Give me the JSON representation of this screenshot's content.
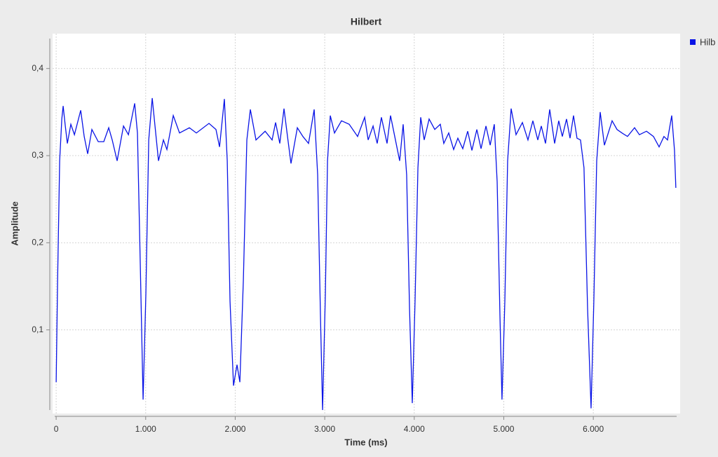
{
  "chart_data": {
    "type": "line",
    "title": "Hilbert",
    "x_label": "Time (ms)",
    "y_label": "Amplitude",
    "xlim": [
      -40,
      6970
    ],
    "ylim": [
      0.004,
      0.44
    ],
    "xticks": [
      0,
      {
        "value": 1000,
        "label": "1.000"
      },
      {
        "value": 2000,
        "label": "2.000"
      },
      {
        "value": 3000,
        "label": "3.000"
      },
      {
        "value": 4000,
        "label": "4.000"
      },
      {
        "value": 5000,
        "label": "5.000"
      },
      {
        "value": 6000,
        "label": "6.000"
      }
    ],
    "yticks": [
      {
        "value": 0.1,
        "label": "0,1"
      },
      {
        "value": 0.2,
        "label": "0,2"
      },
      {
        "value": 0.3,
        "label": "0,3"
      },
      {
        "value": 0.4,
        "label": "0,4"
      }
    ],
    "grid": true,
    "legend": "right",
    "x": [
      0,
      16,
      39,
      63,
      78,
      102,
      125,
      164,
      204,
      274,
      313,
      352,
      399,
      470,
      532,
      587,
      626,
      681,
      752,
      807,
      877,
      908,
      940,
      971,
      1002,
      1034,
      1073,
      1104,
      1143,
      1198,
      1237,
      1308,
      1378,
      1488,
      1566,
      1707,
      1785,
      1825,
      1879,
      1911,
      1942,
      1981,
      2020,
      2052,
      2091,
      2130,
      2169,
      2232,
      2334,
      2412,
      2451,
      2498,
      2545,
      2584,
      2623,
      2694,
      2756,
      2819,
      2882,
      2921,
      2952,
      2976,
      3007,
      3031,
      3062,
      3109,
      3187,
      3273,
      3367,
      3446,
      3485,
      3540,
      3586,
      3633,
      3696,
      3735,
      3782,
      3837,
      3876,
      3915,
      3947,
      3978,
      4009,
      4041,
      4072,
      4111,
      4166,
      4229,
      4291,
      4330,
      4385,
      4440,
      4487,
      4542,
      4597,
      4644,
      4699,
      4746,
      4801,
      4848,
      4894,
      4926,
      4957,
      4980,
      5012,
      5043,
      5082,
      5137,
      5208,
      5270,
      5325,
      5380,
      5419,
      5466,
      5513,
      5568,
      5614,
      5654,
      5701,
      5740,
      5779,
      5818,
      5857,
      5896,
      5936,
      5975,
      6006,
      6038,
      6077,
      6124,
      6210,
      6265,
      6320,
      6382,
      6461,
      6515,
      6594,
      6672,
      6735,
      6789,
      6829,
      6876,
      6907,
      6922
    ],
    "series": [
      {
        "name": "Hilb",
        "color": "#0a14e6",
        "values": [
          0.04,
          0.157,
          0.294,
          0.342,
          0.357,
          0.334,
          0.314,
          0.336,
          0.324,
          0.352,
          0.322,
          0.302,
          0.33,
          0.316,
          0.316,
          0.332,
          0.318,
          0.294,
          0.334,
          0.324,
          0.36,
          0.326,
          0.173,
          0.02,
          0.141,
          0.318,
          0.366,
          0.334,
          0.294,
          0.318,
          0.307,
          0.346,
          0.326,
          0.332,
          0.326,
          0.337,
          0.33,
          0.31,
          0.365,
          0.294,
          0.133,
          0.036,
          0.06,
          0.04,
          0.157,
          0.318,
          0.353,
          0.318,
          0.328,
          0.318,
          0.338,
          0.314,
          0.354,
          0.322,
          0.291,
          0.332,
          0.322,
          0.314,
          0.353,
          0.278,
          0.117,
          0.008,
          0.141,
          0.294,
          0.346,
          0.326,
          0.34,
          0.336,
          0.322,
          0.344,
          0.318,
          0.334,
          0.314,
          0.344,
          0.314,
          0.346,
          0.322,
          0.294,
          0.336,
          0.278,
          0.125,
          0.016,
          0.133,
          0.286,
          0.344,
          0.318,
          0.342,
          0.33,
          0.336,
          0.314,
          0.326,
          0.307,
          0.32,
          0.308,
          0.328,
          0.306,
          0.33,
          0.308,
          0.334,
          0.312,
          0.336,
          0.27,
          0.117,
          0.02,
          0.133,
          0.294,
          0.354,
          0.324,
          0.338,
          0.318,
          0.34,
          0.318,
          0.334,
          0.314,
          0.353,
          0.314,
          0.34,
          0.322,
          0.342,
          0.32,
          0.346,
          0.32,
          0.318,
          0.286,
          0.125,
          0.01,
          0.133,
          0.294,
          0.35,
          0.312,
          0.34,
          0.33,
          0.326,
          0.322,
          0.332,
          0.324,
          0.328,
          0.322,
          0.31,
          0.322,
          0.318,
          0.346,
          0.306,
          0.263
        ]
      }
    ]
  }
}
